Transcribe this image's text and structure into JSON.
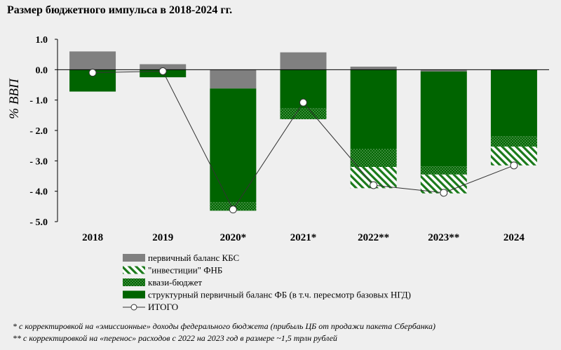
{
  "title": "Размер бюджетного импульса в 2018-2024 гг.",
  "chart_data": {
    "type": "bar",
    "stacked": true,
    "categories": [
      "2018",
      "2019",
      "2020*",
      "2021*",
      "2022**",
      "2023**",
      "2024"
    ],
    "ylabel": "% ВВП",
    "ylim": [
      -5.0,
      1.0
    ],
    "yticks": [
      1.0,
      0.0,
      -1.0,
      -2.0,
      -3.0,
      -4.0,
      -5.0
    ],
    "ytick_labels": [
      "1.0",
      "0.0",
      "- 1.0",
      "- 2.0",
      "- 3.0",
      "- 4.0",
      "- 5.0"
    ],
    "grid": false,
    "legend_position": "bottom",
    "series": [
      {
        "name": "первичный баланс КБС",
        "kind": "bar",
        "color": "#808080",
        "pattern": "solid",
        "values": [
          0.6,
          0.18,
          -0.62,
          0.57,
          0.1,
          -0.06,
          0.0
        ]
      },
      {
        "name": "\"инвестиции\" ФНБ",
        "kind": "bar",
        "color": "#1b7a1b",
        "pattern": "diagonal",
        "values": [
          0.0,
          0.0,
          0.0,
          0.0,
          -0.7,
          -0.62,
          -0.62
        ]
      },
      {
        "name": "квази-бюджет",
        "kind": "bar",
        "color": "#0b6b0b",
        "pattern": "dotted",
        "values": [
          0.0,
          0.0,
          -0.27,
          -0.35,
          -0.6,
          -0.27,
          -0.33
        ]
      },
      {
        "name": "структурный первичный баланс ФБ (в т.ч. пересмотр базовых НГД)",
        "kind": "bar",
        "color": "#006400",
        "pattern": "solid",
        "values": [
          -0.72,
          -0.25,
          -3.75,
          -1.28,
          -2.6,
          -3.12,
          -2.2
        ]
      },
      {
        "name": "ИТОГО",
        "kind": "line",
        "color": "#000000",
        "values": [
          -0.1,
          -0.05,
          -4.6,
          -1.08,
          -3.8,
          -4.05,
          -3.15
        ]
      }
    ]
  },
  "notes": [
    "* с корректировкой на «эмиссионные» доходы федерального бюджета (прибыль ЦБ от продажи пакета Сбербанка)",
    "** с корректировкой на «перенос» расходов с 2022 на 2023 год в размере ~1,5 трлн рублей"
  ]
}
